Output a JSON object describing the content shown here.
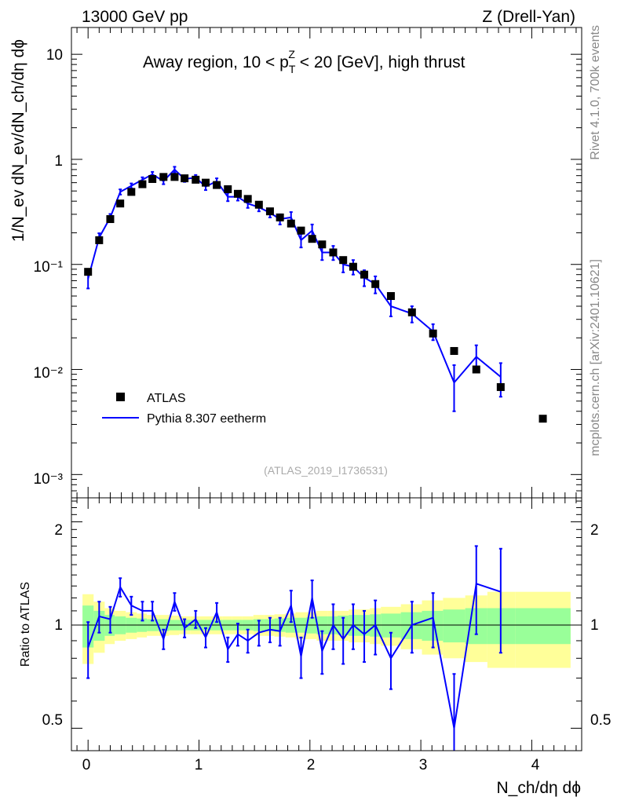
{
  "header": {
    "energy_label": "13000 GeV pp",
    "process_label": "Z (Drell-Yan)",
    "side_rivet": "Rivet 4.1.0,  700k events",
    "side_url": "mcplots.cern.ch [arXiv:2401.10621]",
    "watermark": "(ATLAS_2019_I1736531)"
  },
  "plot_title": {
    "prefix": "Away region, 10 < p",
    "sub": "T",
    "sup": "Z",
    "suffix": " < 20 [GeV], high thrust"
  },
  "axes": {
    "y_main_label": "1/N_ev dN_ev/dN_ch/dη dϕ",
    "y_main_ticks": [
      "10",
      "1",
      "10⁻¹",
      "10⁻²",
      "10⁻³"
    ],
    "y_ratio_label": "Ratio to ATLAS",
    "y_ratio_ticks": [
      "2",
      "1",
      "0.5"
    ],
    "x_ticks": [
      "0",
      "1",
      "2",
      "3",
      "4"
    ],
    "x_label": "N_ch/dη dϕ"
  },
  "legend": {
    "data_label": "ATLAS",
    "mc_label": "Pythia 8.307 eetherm"
  },
  "colors": {
    "mc": "#0000ff",
    "band_inner": "#99ff99",
    "band_outer": "#ffff99",
    "data": "#000000"
  },
  "chart_data": {
    "type": "scatter",
    "title": "Away region, 10 < pT^Z < 20 [GeV], high thrust",
    "xlabel": "N_ch/dη dϕ",
    "ylabel": "1/N_ev dN_ev/dN_ch/dη dϕ",
    "xlim": [
      -0.15,
      4.45
    ],
    "ylim": [
      0.0006,
      18
    ],
    "yscale": "log",
    "ratio_ylim": [
      0.43,
      2.35
    ],
    "ratio_ylabel": "Ratio to ATLAS",
    "atlas": {
      "x": [
        0.0,
        0.1,
        0.2,
        0.29,
        0.39,
        0.49,
        0.58,
        0.68,
        0.78,
        0.87,
        0.97,
        1.06,
        1.16,
        1.26,
        1.35,
        1.44,
        1.54,
        1.64,
        1.73,
        1.83,
        1.92,
        2.02,
        2.11,
        2.21,
        2.3,
        2.39,
        2.49,
        2.59,
        2.73,
        2.92,
        3.11,
        3.3,
        3.5,
        3.72,
        4.1
      ],
      "y": [
        0.085,
        0.17,
        0.27,
        0.38,
        0.49,
        0.58,
        0.65,
        0.68,
        0.68,
        0.66,
        0.64,
        0.6,
        0.57,
        0.52,
        0.47,
        0.42,
        0.37,
        0.32,
        0.28,
        0.245,
        0.21,
        0.175,
        0.155,
        0.13,
        0.11,
        0.095,
        0.08,
        0.065,
        0.05,
        0.035,
        0.022,
        0.015,
        0.01,
        0.0068,
        0.0034
      ]
    },
    "pythia": {
      "x": [
        0.0,
        0.1,
        0.2,
        0.29,
        0.39,
        0.49,
        0.58,
        0.68,
        0.78,
        0.87,
        0.97,
        1.06,
        1.16,
        1.26,
        1.35,
        1.44,
        1.54,
        1.64,
        1.73,
        1.83,
        1.92,
        2.02,
        2.11,
        2.21,
        2.3,
        2.39,
        2.49,
        2.59,
        2.73,
        2.92,
        3.11,
        3.3,
        3.5,
        3.72
      ],
      "y": [
        0.073,
        0.18,
        0.28,
        0.49,
        0.56,
        0.64,
        0.72,
        0.62,
        0.8,
        0.65,
        0.67,
        0.55,
        0.62,
        0.44,
        0.44,
        0.38,
        0.35,
        0.31,
        0.27,
        0.28,
        0.17,
        0.21,
        0.13,
        0.13,
        0.1,
        0.095,
        0.075,
        0.065,
        0.04,
        0.034,
        0.023,
        0.0075,
        0.0132,
        0.0085
      ],
      "yerr": [
        0.014,
        0.018,
        0.022,
        0.028,
        0.03,
        0.035,
        0.04,
        0.04,
        0.05,
        0.04,
        0.04,
        0.04,
        0.04,
        0.04,
        0.035,
        0.035,
        0.03,
        0.03,
        0.03,
        0.035,
        0.025,
        0.03,
        0.02,
        0.02,
        0.016,
        0.015,
        0.013,
        0.012,
        0.008,
        0.006,
        0.004,
        0.0035,
        0.0038,
        0.003
      ]
    },
    "ratio": {
      "x": [
        0.0,
        0.1,
        0.2,
        0.29,
        0.39,
        0.49,
        0.58,
        0.68,
        0.78,
        0.87,
        0.97,
        1.06,
        1.16,
        1.26,
        1.35,
        1.44,
        1.54,
        1.64,
        1.73,
        1.83,
        1.92,
        2.02,
        2.11,
        2.21,
        2.3,
        2.39,
        2.49,
        2.59,
        2.73,
        2.92,
        3.11,
        3.3,
        3.5,
        3.72
      ],
      "y": [
        0.86,
        1.06,
        1.04,
        1.29,
        1.14,
        1.1,
        1.1,
        0.91,
        1.17,
        0.98,
        1.04,
        0.92,
        1.09,
        0.85,
        0.94,
        0.9,
        0.95,
        0.97,
        0.96,
        1.14,
        0.81,
        1.2,
        0.84,
        1.0,
        0.91,
        1.0,
        0.94,
        1.0,
        0.8,
        1.0,
        1.05,
        0.5,
        1.32,
        1.25
      ],
      "err": [
        0.16,
        0.11,
        0.09,
        0.08,
        0.07,
        0.07,
        0.07,
        0.06,
        0.07,
        0.06,
        0.06,
        0.06,
        0.07,
        0.07,
        0.07,
        0.07,
        0.08,
        0.08,
        0.09,
        0.12,
        0.11,
        0.15,
        0.12,
        0.15,
        0.14,
        0.15,
        0.16,
        0.18,
        0.15,
        0.17,
        0.19,
        0.22,
        0.38,
        0.42
      ]
    },
    "bands": {
      "edges": [
        -0.05,
        0.05,
        0.15,
        0.24,
        0.34,
        0.44,
        0.53,
        0.63,
        0.73,
        0.82,
        0.92,
        1.01,
        1.11,
        1.21,
        1.3,
        1.39,
        1.49,
        1.59,
        1.68,
        1.78,
        1.87,
        1.97,
        2.06,
        2.16,
        2.25,
        2.35,
        2.44,
        2.54,
        2.64,
        2.82,
        3.01,
        3.2,
        3.4,
        3.6,
        3.85,
        4.35
      ],
      "inner": [
        0.14,
        0.1,
        0.07,
        0.06,
        0.05,
        0.045,
        0.04,
        0.04,
        0.035,
        0.035,
        0.035,
        0.035,
        0.035,
        0.035,
        0.035,
        0.035,
        0.04,
        0.04,
        0.045,
        0.05,
        0.05,
        0.055,
        0.06,
        0.06,
        0.065,
        0.07,
        0.07,
        0.075,
        0.08,
        0.09,
        0.1,
        0.11,
        0.12,
        0.12,
        0.12
      ],
      "outer": [
        0.23,
        0.17,
        0.12,
        0.1,
        0.09,
        0.08,
        0.07,
        0.07,
        0.065,
        0.06,
        0.06,
        0.06,
        0.06,
        0.06,
        0.06,
        0.06,
        0.07,
        0.07,
        0.075,
        0.08,
        0.09,
        0.09,
        0.1,
        0.1,
        0.1,
        0.11,
        0.11,
        0.12,
        0.13,
        0.15,
        0.18,
        0.2,
        0.22,
        0.25,
        0.25
      ]
    }
  }
}
